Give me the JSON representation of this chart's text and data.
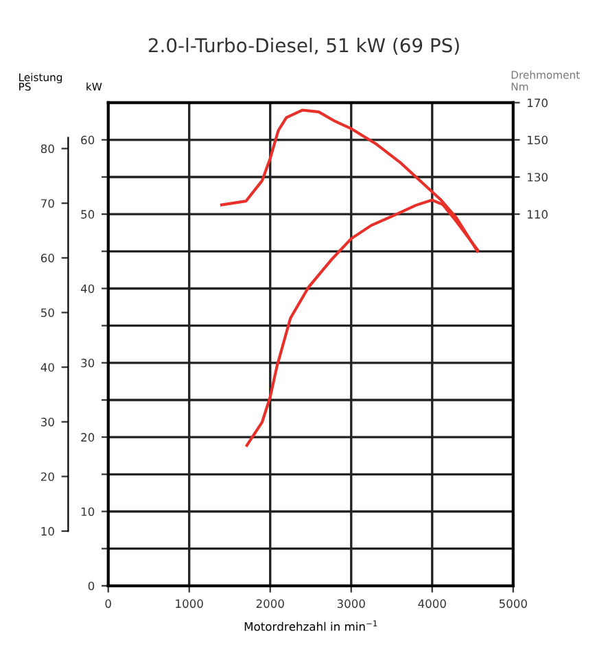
{
  "chart_data": {
    "type": "line",
    "title": "2.0-l-Turbo-Diesel, 51 kW (69 PS)",
    "xlabel": "Motordrehzahl in min$^{−1}$",
    "ylabel": "kW",
    "y2label": "Drehmoment\nNm",
    "y3label": "Leistung\nPS",
    "xlim": [
      0,
      5000
    ],
    "xticks": [
      0,
      1000,
      2000,
      3000,
      4000,
      5000
    ],
    "ylim": [
      0,
      65
    ],
    "yticks": [
      0,
      {
        "value": 5,
        "label": null
      },
      10,
      {
        "value": 15,
        "label": null
      },
      20,
      {
        "value": 25,
        "label": null
      },
      30,
      {
        "value": 35,
        "label": null
      },
      40,
      {
        "value": 45,
        "label": null
      },
      50,
      {
        "value": 55,
        "label": null
      },
      60
    ],
    "y2lim": [
      -90,
      170
    ],
    "y2ticks": [
      110,
      130,
      150,
      170
    ],
    "y3lim": [
      0,
      88.4
    ],
    "y3ticks": [
      10,
      20,
      30,
      40,
      50,
      60,
      70,
      80
    ],
    "grid": true,
    "legend": false,
    "marker": "none",
    "line_style": "solid",
    "series": [
      {
        "color": "#e8302a",
        "axis": "y2",
        "x": [
          1400,
          1700,
          1900,
          2000,
          2100,
          2200,
          2400,
          2600,
          2800,
          3000,
          3300,
          3600,
          3900,
          4100,
          4300,
          4560
        ],
        "values": [
          115,
          117,
          128,
          140,
          155,
          162,
          166,
          165,
          160,
          156,
          148,
          138,
          126,
          118,
          108,
          90
        ]
      },
      {
        "color": "#e8302a",
        "axis": "y",
        "x": [
          1712,
          1900,
          2000,
          2085,
          2250,
          2475,
          2750,
          3000,
          3250,
          3520,
          3800,
          4000,
          4130,
          4300,
          4560
        ],
        "values": [
          18.9,
          22,
          25.4,
          29.6,
          36,
          40.2,
          43.8,
          46.7,
          48.5,
          49.8,
          51.2,
          51.9,
          51.3,
          49,
          45.2
        ]
      }
    ]
  }
}
